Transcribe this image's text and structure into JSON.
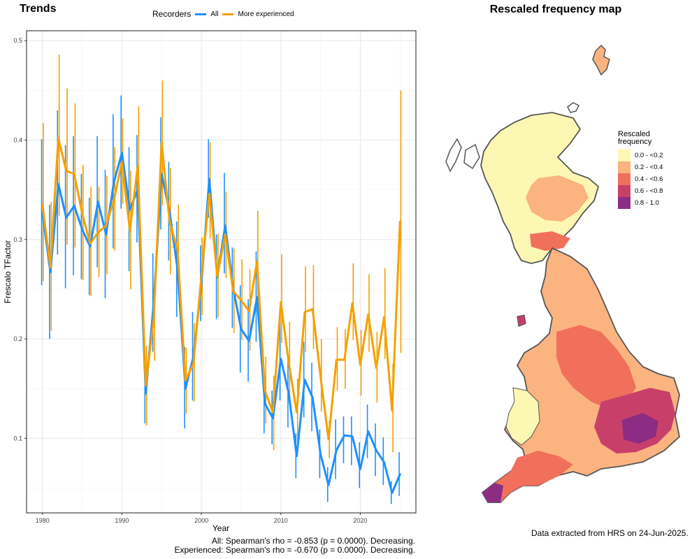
{
  "left_panel_title": "Trends",
  "right_panel_title": "Rescaled frequency map",
  "legend": {
    "title": "Recorders",
    "items": [
      {
        "label": "All",
        "color": "#1e90ff"
      },
      {
        "label": "More experienced",
        "color": "#f5a000"
      }
    ]
  },
  "chart_data": {
    "type": "line",
    "xlabel": "Year",
    "ylabel": "Frescalo TFactor",
    "xlim": [
      1978,
      2027
    ],
    "ylim": [
      0.025,
      0.51
    ],
    "x_ticks": [
      "1980",
      "1990",
      "2000",
      "2010",
      "2020"
    ],
    "y_ticks": [
      "0.1",
      "0.2",
      "0.3",
      "0.4",
      "0.5"
    ],
    "grid": true,
    "legend_position": "top",
    "series": [
      {
        "name": "All",
        "color": "#1e90ff",
        "x": [
          1980,
          1981,
          1982,
          1983,
          1984,
          1985,
          1986,
          1987,
          1988,
          1989,
          1990,
          1991,
          1992,
          1993,
          1994,
          1995,
          1996,
          1997,
          1998,
          1999,
          2000,
          2001,
          2002,
          2003,
          2004,
          2005,
          2006,
          2007,
          2008,
          2009,
          2010,
          2011,
          2012,
          2013,
          2014,
          2015,
          2016,
          2017,
          2018,
          2019,
          2020,
          2021,
          2022,
          2023,
          2024,
          2025
        ],
        "y": [
          0.327,
          0.267,
          0.356,
          0.322,
          0.334,
          0.31,
          0.293,
          0.338,
          0.305,
          0.358,
          0.387,
          0.33,
          0.35,
          0.145,
          0.236,
          0.366,
          0.328,
          0.27,
          0.15,
          0.182,
          0.255,
          0.361,
          0.262,
          0.314,
          0.251,
          0.21,
          0.198,
          0.242,
          0.135,
          0.12,
          0.18,
          0.145,
          0.082,
          0.159,
          0.141,
          0.084,
          0.053,
          0.088,
          0.103,
          0.102,
          0.069,
          0.107,
          0.088,
          0.076,
          0.045,
          0.064
        ],
        "err_low": [
          0.254,
          0.2,
          0.285,
          0.251,
          0.264,
          0.26,
          0.244,
          0.272,
          0.241,
          0.291,
          0.331,
          0.268,
          0.297,
          0.115,
          0.187,
          0.31,
          0.279,
          0.222,
          0.11,
          0.138,
          0.218,
          0.322,
          0.22,
          0.266,
          0.211,
          0.166,
          0.157,
          0.197,
          0.105,
          0.094,
          0.138,
          0.111,
          0.06,
          0.121,
          0.107,
          0.06,
          0.036,
          0.059,
          0.075,
          0.073,
          0.05,
          0.08,
          0.062,
          0.053,
          0.034,
          0.042
        ],
        "err_high": [
          0.401,
          0.335,
          0.43,
          0.395,
          0.404,
          0.366,
          0.342,
          0.404,
          0.37,
          0.426,
          0.445,
          0.393,
          0.405,
          0.176,
          0.286,
          0.423,
          0.378,
          0.318,
          0.192,
          0.227,
          0.294,
          0.401,
          0.305,
          0.367,
          0.292,
          0.254,
          0.24,
          0.288,
          0.167,
          0.148,
          0.223,
          0.18,
          0.105,
          0.197,
          0.176,
          0.109,
          0.071,
          0.119,
          0.122,
          0.122,
          0.096,
          0.134,
          0.115,
          0.101,
          0.057,
          0.086
        ]
      },
      {
        "name": "More experienced",
        "color": "#f5a000",
        "x": [
          1980,
          1981,
          1982,
          1983,
          1984,
          1985,
          1986,
          1987,
          1988,
          1989,
          1990,
          1991,
          1992,
          1993,
          1994,
          1995,
          1996,
          1997,
          1998,
          1999,
          2000,
          2001,
          2002,
          2003,
          2004,
          2005,
          2006,
          2007,
          2008,
          2009,
          2010,
          2011,
          2012,
          2013,
          2014,
          2015,
          2016,
          2017,
          2018,
          2019,
          2020,
          2021,
          2022,
          2023,
          2024,
          2025
        ],
        "y": [
          0.335,
          0.272,
          0.402,
          0.369,
          0.366,
          0.326,
          0.296,
          0.307,
          0.314,
          0.34,
          0.378,
          0.309,
          0.374,
          0.153,
          0.22,
          0.397,
          0.318,
          0.29,
          0.158,
          0.175,
          0.263,
          0.346,
          0.263,
          0.305,
          0.248,
          0.239,
          0.228,
          0.278,
          0.148,
          0.126,
          0.237,
          0.176,
          0.126,
          0.227,
          0.23,
          0.162,
          0.099,
          0.179,
          0.179,
          0.236,
          0.174,
          0.225,
          0.171,
          0.222,
          0.128,
          0.318
        ],
        "err_low": [
          0.258,
          0.208,
          0.324,
          0.295,
          0.292,
          0.259,
          0.243,
          0.262,
          0.265,
          0.289,
          0.336,
          0.25,
          0.313,
          0.113,
          0.178,
          0.334,
          0.265,
          0.245,
          0.125,
          0.137,
          0.224,
          0.301,
          0.222,
          0.261,
          0.206,
          0.199,
          0.188,
          0.23,
          0.115,
          0.088,
          0.196,
          0.14,
          0.094,
          0.187,
          0.19,
          0.127,
          0.08,
          0.148,
          0.15,
          0.199,
          0.143,
          0.187,
          0.136,
          0.18,
          0.086,
          0.186
        ],
        "err_high": [
          0.417,
          0.338,
          0.486,
          0.452,
          0.437,
          0.375,
          0.353,
          0.353,
          0.364,
          0.393,
          0.422,
          0.369,
          0.434,
          0.193,
          0.261,
          0.46,
          0.372,
          0.335,
          0.191,
          0.216,
          0.302,
          0.398,
          0.306,
          0.348,
          0.291,
          0.28,
          0.27,
          0.329,
          0.182,
          0.163,
          0.285,
          0.217,
          0.16,
          0.273,
          0.274,
          0.2,
          0.118,
          0.212,
          0.21,
          0.276,
          0.209,
          0.265,
          0.207,
          0.271,
          0.175,
          0.45
        ]
      }
    ]
  },
  "stats": {
    "line1": "All: Spearman's rho = -0.853 (p = 0.0000). Decreasing.",
    "line2": "Experienced: Spearman's rho = -0.670 (p = 0.0000). Decreasing."
  },
  "map_legend": {
    "title": "Rescaled frequency",
    "items": [
      {
        "label": "0.0 - <0.2",
        "color": "#fdf7b4"
      },
      {
        "label": "0.2 - <0.4",
        "color": "#fbb37f"
      },
      {
        "label": "0.4 - <0.6",
        "color": "#f0705c"
      },
      {
        "label": "0.6 - <0.8",
        "color": "#c8406a"
      },
      {
        "label": "0.8 - 1.0",
        "color": "#8c2c83"
      }
    ]
  },
  "credit": "Data extracted from HRS on 24-Jun-2025."
}
